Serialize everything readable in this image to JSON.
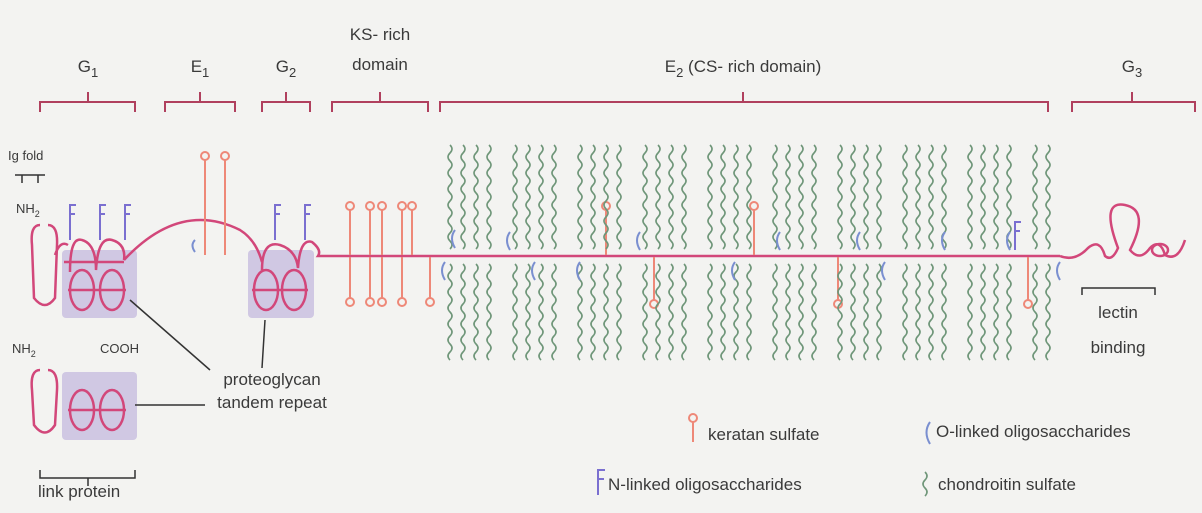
{
  "domains": [
    {
      "label": "G",
      "sub": "1"
    },
    {
      "label": "E",
      "sub": "1"
    },
    {
      "label": "G",
      "sub": "2"
    },
    {
      "lines": [
        "KS- rich",
        "domain"
      ]
    },
    {
      "label": "E",
      "sub": "2",
      "suffix": " (CS- rich domain)"
    },
    {
      "label": "G",
      "sub": "3"
    }
  ],
  "annotations": {
    "ig_fold": "Ig fold",
    "nh2_top": {
      "label": "NH",
      "sub": "2"
    },
    "nh2_bottom": {
      "label": "NH",
      "sub": "2"
    },
    "cooh": "COOH",
    "tandem_repeat": [
      "proteoglycan",
      "tandem repeat"
    ],
    "link_protein": "link protein",
    "lectin_binding": [
      "lectin",
      "binding"
    ]
  },
  "legend": {
    "keratan_sulfate": "keratan sulfate",
    "o_linked": "O-linked oligosaccharides",
    "n_linked": "N-linked oligosaccharides",
    "chondroitin_sulfate": "chondroitin sulfate"
  }
}
